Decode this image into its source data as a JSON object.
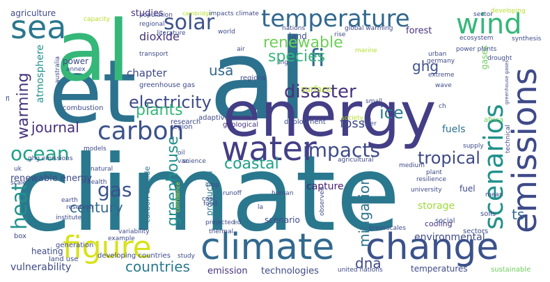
{
  "word_cloud": {
    "words": [
      {
        "text": "climate",
        "color": "#2a788e"
      },
      {
        "text": "et",
        "color": "#2c728e"
      },
      {
        "text": "al",
        "color": "#35b779"
      },
      {
        "text": "al",
        "color": "#2c728e"
      },
      {
        "text": "energy",
        "color": "#433e85"
      },
      {
        "text": "climate",
        "color": "#31688e"
      },
      {
        "text": "change",
        "color": "#3b528b"
      },
      {
        "text": "emissions",
        "color": "#3e4a89"
      },
      {
        "text": "temperature",
        "color": "#31688e"
      },
      {
        "text": "wind",
        "color": "#35b779"
      },
      {
        "text": "sea",
        "color": "#2a788e"
      },
      {
        "text": "solar",
        "color": "#3b528b"
      },
      {
        "text": "water",
        "color": "#433e85"
      },
      {
        "text": "carbon",
        "color": "#3b528b"
      },
      {
        "text": "figure",
        "color": "#d8e219"
      },
      {
        "text": "scenarios",
        "color": "#21918c"
      },
      {
        "text": "impacts",
        "color": "#3e4a89"
      },
      {
        "text": "ocean",
        "color": "#1fa187"
      },
      {
        "text": "fi",
        "color": "#31688e"
      },
      {
        "text": "warming",
        "color": "#46337e"
      },
      {
        "text": "heat",
        "color": "#21918c"
      },
      {
        "text": "gas",
        "color": "#3b528b"
      },
      {
        "text": "electricity",
        "color": "#3e4a89"
      },
      {
        "text": "disaster",
        "color": "#46337e"
      },
      {
        "text": "species",
        "color": "#35b779"
      },
      {
        "text": "usa",
        "color": "#31688e"
      },
      {
        "text": "renewable",
        "color": "#6ece58"
      },
      {
        "text": "tropical",
        "color": "#3e4a89"
      },
      {
        "text": "coastal",
        "color": "#1fa187"
      },
      {
        "text": "ice",
        "color": "#2a788e"
      },
      {
        "text": "plants",
        "color": "#35b779"
      },
      {
        "text": "journal",
        "color": "#472d7b"
      },
      {
        "text": "greenhouse",
        "color": "#21918c"
      },
      {
        "text": "century",
        "color": "#31688e"
      },
      {
        "text": "countries",
        "color": "#2a788e"
      },
      {
        "text": "dna",
        "color": "#3e4a89"
      },
      {
        "text": "mitigation",
        "color": "#2c728e"
      },
      {
        "text": "ghg",
        "color": "#3b528b"
      },
      {
        "text": "fossil",
        "color": "#3e4a89"
      },
      {
        "text": "ts",
        "color": "#31688e"
      },
      {
        "text": "dioxide",
        "color": "#46337e"
      },
      {
        "text": "chapter",
        "color": "#3e4a89"
      },
      {
        "text": "atmosphere",
        "color": "#21918c"
      },
      {
        "text": "vulnerability",
        "color": "#3e4a89"
      },
      {
        "text": "environmental",
        "color": "#3e4a89"
      },
      {
        "text": "storage",
        "color": "#9fda3a"
      },
      {
        "text": "technologies",
        "color": "#3e4a89"
      },
      {
        "text": "emission",
        "color": "#46337e"
      },
      {
        "text": "capture",
        "color": "#481f70"
      },
      {
        "text": "fuels",
        "color": "#2c728e"
      },
      {
        "text": "forest",
        "color": "#46337e"
      },
      {
        "text": "studies",
        "color": "#46337e"
      },
      {
        "text": "agriculture",
        "color": "#3e4a89"
      },
      {
        "text": "power",
        "color": "#3e4a89"
      },
      {
        "text": "land",
        "color": "#3e4a89"
      },
      {
        "text": "surface",
        "color": "#b5de2b"
      },
      {
        "text": "renewable energy",
        "color": "#3e4a89"
      },
      {
        "text": "heating",
        "color": "#3e4a89"
      },
      {
        "text": "scenario",
        "color": "#3e4a89"
      },
      {
        "text": "temperatures",
        "color": "#3e4a89"
      },
      {
        "text": "fuel",
        "color": "#3e4a89"
      },
      {
        "text": "gases",
        "color": "#6ece58"
      },
      {
        "text": "production",
        "color": "#2a788e"
      },
      {
        "text": "carbon dioxide",
        "color": "#2c728e"
      },
      {
        "text": "cooling",
        "color": "#46337e"
      },
      {
        "text": "greenhouse gas",
        "color": "#3e4a89"
      },
      {
        "text": "combustion",
        "color": "#3e4a89"
      },
      {
        "text": "box",
        "color": "#3e4a89"
      },
      {
        "text": "generation",
        "color": "#3e4a89"
      },
      {
        "text": "land use",
        "color": "#3e4a89"
      },
      {
        "text": "developing countries",
        "color": "#3e4a89"
      },
      {
        "text": "regions",
        "color": "#3e4a89"
      },
      {
        "text": "adaptive",
        "color": "#3e4a89"
      },
      {
        "text": "research",
        "color": "#3e4a89"
      },
      {
        "text": "region",
        "color": "#3e4a89"
      },
      {
        "text": "geological",
        "color": "#46337e"
      },
      {
        "text": "deployment",
        "color": "#3e4a89"
      },
      {
        "text": "social",
        "color": "#3e4a89"
      },
      {
        "text": "africa",
        "color": "#6ece58"
      },
      {
        "text": "sectors",
        "color": "#3e4a89"
      },
      {
        "text": "soils",
        "color": "#3e4a89"
      },
      {
        "text": "sustainable",
        "color": "#6ece58"
      },
      {
        "text": "population",
        "color": "#3e4a89"
      },
      {
        "text": "regional",
        "color": "#3e4a89"
      },
      {
        "text": "literature",
        "color": "#3e4a89"
      },
      {
        "text": "cambridge",
        "color": "#b5de2b"
      },
      {
        "text": "impacts climate",
        "color": "#3e4a89"
      },
      {
        "text": "nations",
        "color": "#3e4a89"
      },
      {
        "text": "global warming",
        "color": "#3e4a89"
      },
      {
        "text": "rise",
        "color": "#3e4a89"
      },
      {
        "text": "sector",
        "color": "#3e4a89"
      },
      {
        "text": "developing",
        "color": "#b5de2b"
      },
      {
        "text": "synthesis",
        "color": "#3e4a89"
      },
      {
        "text": "ecosystem",
        "color": "#3e4a89"
      },
      {
        "text": "drought",
        "color": "#3e4a89"
      },
      {
        "text": "power plants",
        "color": "#3e4a89"
      },
      {
        "text": "urban",
        "color": "#3e4a89"
      },
      {
        "text": "germany",
        "color": "#3e4a89"
      },
      {
        "text": "extreme",
        "color": "#3e4a89"
      },
      {
        "text": "wave",
        "color": "#3e4a89"
      },
      {
        "text": "capacity",
        "color": "#b5de2b"
      },
      {
        "text": "transport",
        "color": "#3e4a89"
      },
      {
        "text": "world",
        "color": "#3e4a89"
      },
      {
        "text": "australia",
        "color": "#3e4a89"
      },
      {
        "text": "annex",
        "color": "#3e4a89"
      },
      {
        "text": "air",
        "color": "#3e4a89"
      },
      {
        "text": "marine",
        "color": "#b5de2b"
      },
      {
        "text": "ing",
        "color": "#3e4a89"
      },
      {
        "text": "small",
        "color": "#3e4a89"
      },
      {
        "text": "ch",
        "color": "#3e4a89"
      },
      {
        "text": "society",
        "color": "#b5de2b"
      },
      {
        "text": "river",
        "color": "#3e4a89"
      },
      {
        "text": "ghg emissions",
        "color": "#3e4a89"
      },
      {
        "text": "fl",
        "color": "#3e4a89"
      },
      {
        "text": "uk",
        "color": "#3e4a89"
      },
      {
        "text": "van",
        "color": "#3e4a89"
      },
      {
        "text": "oil",
        "color": "#3e4a89"
      },
      {
        "text": "models",
        "color": "#3e4a89"
      },
      {
        "text": "natural",
        "color": "#3e4a89"
      },
      {
        "text": "agricultural",
        "color": "#3e4a89"
      },
      {
        "text": "science",
        "color": "#3e4a89"
      },
      {
        "text": "supply",
        "color": "#3e4a89"
      },
      {
        "text": "medium",
        "color": "#3e4a89"
      },
      {
        "text": "plant",
        "color": "#3e4a89"
      },
      {
        "text": "technical",
        "color": "#3e4a89"
      },
      {
        "text": "scale",
        "color": "#3e4a89"
      },
      {
        "text": "health",
        "color": "#3e4a89"
      },
      {
        "text": "earth",
        "color": "#3e4a89"
      },
      {
        "text": "reservoir",
        "color": "#3e4a89"
      },
      {
        "text": "institute",
        "color": "#3e4a89"
      },
      {
        "text": "coal",
        "color": "#3e4a89"
      },
      {
        "text": "confidence",
        "color": "#b5de2b"
      },
      {
        "text": "crop",
        "color": "#3e4a89"
      },
      {
        "text": "runoff",
        "color": "#3e4a89"
      },
      {
        "text": "food",
        "color": "#3e4a89"
      },
      {
        "text": "projected",
        "color": "#3e4a89"
      },
      {
        "text": "thermal",
        "color": "#3e4a89"
      },
      {
        "text": "human",
        "color": "#3e4a89"
      },
      {
        "text": "observed",
        "color": "#3e4a89"
      },
      {
        "text": "la",
        "color": "#3e4a89"
      },
      {
        "text": "resilience",
        "color": "#3e4a89"
      },
      {
        "text": "university",
        "color": "#3e4a89"
      },
      {
        "text": "mean",
        "color": "#3e4a89"
      },
      {
        "text": "variability",
        "color": "#3e4a89"
      },
      {
        "text": "example",
        "color": "#3e4a89"
      },
      {
        "text": "study",
        "color": "#3e4a89"
      },
      {
        "text": "ed",
        "color": "#3e4a89"
      },
      {
        "text": "united nations",
        "color": "#3e4a89"
      },
      {
        "text": "press",
        "color": "#3e4a89"
      },
      {
        "text": "scales",
        "color": "#3e4a89"
      },
      {
        "text": "greenhouse gases",
        "color": "#3e4a89"
      }
    ]
  }
}
